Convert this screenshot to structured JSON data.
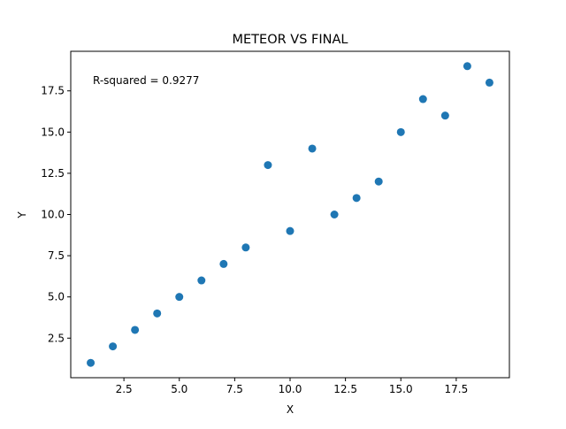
{
  "chart_data": {
    "type": "scatter",
    "title": "METEOR VS FINAL",
    "xlabel": "X",
    "ylabel": "Y",
    "annotation": "R-squared = 0.9277",
    "xlim": [
      0.1,
      19.9
    ],
    "ylim": [
      0.1,
      19.9
    ],
    "xticks": [
      2.5,
      5.0,
      7.5,
      10.0,
      12.5,
      15.0,
      17.5
    ],
    "xtick_labels": [
      "2.5",
      "5.0",
      "7.5",
      "10.0",
      "12.5",
      "15.0",
      "17.5"
    ],
    "yticks": [
      2.5,
      5.0,
      7.5,
      10.0,
      12.5,
      15.0,
      17.5
    ],
    "ytick_labels": [
      "2.5",
      "5.0",
      "7.5",
      "10.0",
      "12.5",
      "15.0",
      "17.5"
    ],
    "grid": false,
    "marker_color": "#1f77b4",
    "points": [
      {
        "x": 1,
        "y": 1
      },
      {
        "x": 2,
        "y": 2
      },
      {
        "x": 3,
        "y": 3
      },
      {
        "x": 4,
        "y": 4
      },
      {
        "x": 5,
        "y": 5
      },
      {
        "x": 6,
        "y": 6
      },
      {
        "x": 7,
        "y": 7
      },
      {
        "x": 8,
        "y": 8
      },
      {
        "x": 9,
        "y": 13
      },
      {
        "x": 10,
        "y": 9
      },
      {
        "x": 11,
        "y": 14
      },
      {
        "x": 12,
        "y": 10
      },
      {
        "x": 13,
        "y": 11
      },
      {
        "x": 14,
        "y": 12
      },
      {
        "x": 15,
        "y": 15
      },
      {
        "x": 16,
        "y": 17
      },
      {
        "x": 17,
        "y": 16
      },
      {
        "x": 18,
        "y": 19
      },
      {
        "x": 19,
        "y": 18
      }
    ]
  }
}
